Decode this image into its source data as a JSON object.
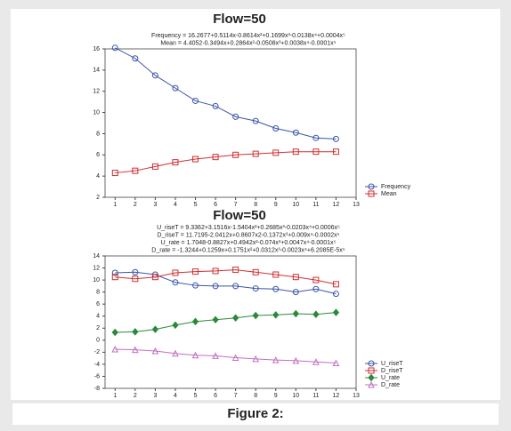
{
  "chart_data": [
    {
      "type": "line",
      "title": "Flow=50",
      "equations": [
        "Frequency = 16.2677+0.5114x-0.8614x²+0.1699x³-0.0138x⁴+0.0004x⁵",
        "Mean = 4.4052-0.3494x+0.2864x²-0.0508x³+0.0038x⁴-0.0001x⁵"
      ],
      "x": [
        1,
        2,
        3,
        4,
        5,
        6,
        7,
        8,
        9,
        10,
        11,
        12
      ],
      "series": [
        {
          "name": "Frequency",
          "color": "#3a55a8",
          "marker": "circle",
          "values": [
            16.1,
            15.1,
            13.5,
            12.3,
            11.1,
            10.6,
            9.6,
            9.2,
            8.5,
            8.1,
            7.6,
            7.5
          ]
        },
        {
          "name": "Mean",
          "color": "#d03030",
          "marker": "square",
          "values": [
            4.3,
            4.5,
            4.9,
            5.3,
            5.6,
            5.8,
            6.0,
            6.1,
            6.2,
            6.3,
            6.3,
            6.3
          ]
        }
      ],
      "xlim": [
        0.5,
        13
      ],
      "xticks": [
        1,
        2,
        3,
        4,
        5,
        6,
        7,
        8,
        9,
        10,
        11,
        12,
        13
      ],
      "ylim": [
        2,
        16
      ],
      "yticks": [
        2,
        4,
        6,
        8,
        10,
        12,
        14,
        16
      ],
      "legend": "lower right"
    },
    {
      "type": "line",
      "title": "Flow=50",
      "equations": [
        "U_riseT = 9.3362+3.1516x-1.5404x²+0.2685x³-0.0203x⁴+0.0006x⁵",
        "D_riseT = 11.7195-2.0412x+0.8607x2-0.1372x³+0.009x⁴-0.0002x⁵",
        "U_rate = 1.7048-0.8827x+0.4942x²-0.074x³+0.0047x⁴-0.0001x⁵",
        "D_rate = -1.3244+0.1259x+0.1751x²+0.0312x³-0.0023x⁴+6.2085E-5x⁵"
      ],
      "x": [
        1,
        2,
        3,
        4,
        5,
        6,
        7,
        8,
        9,
        10,
        11,
        12
      ],
      "series": [
        {
          "name": "U_riseT",
          "color": "#3a55a8",
          "marker": "circle",
          "values": [
            11.2,
            11.3,
            10.9,
            9.6,
            9.1,
            9.0,
            9.0,
            8.6,
            8.5,
            8.0,
            8.5,
            7.7
          ]
        },
        {
          "name": "D_riseT",
          "color": "#d03030",
          "marker": "square",
          "values": [
            10.5,
            10.2,
            10.5,
            11.2,
            11.4,
            11.5,
            11.7,
            11.3,
            10.9,
            10.5,
            10.0,
            9.3
          ]
        },
        {
          "name": "U_rate",
          "color": "#2a8a3a",
          "marker": "diamond",
          "values": [
            1.3,
            1.4,
            1.8,
            2.5,
            3.1,
            3.4,
            3.7,
            4.1,
            4.2,
            4.4,
            4.3,
            4.6
          ]
        },
        {
          "name": "D_rate",
          "color": "#c070c0",
          "marker": "triangle",
          "values": [
            -1.5,
            -1.6,
            -1.8,
            -2.2,
            -2.5,
            -2.6,
            -2.9,
            -3.1,
            -3.3,
            -3.4,
            -3.6,
            -3.8
          ]
        }
      ],
      "xlim": [
        0.5,
        13
      ],
      "xticks": [
        1,
        2,
        3,
        4,
        5,
        6,
        7,
        8,
        9,
        10,
        11,
        12,
        13
      ],
      "ylim": [
        -8,
        14
      ],
      "yticks": [
        -8,
        -6,
        -4,
        -2,
        0,
        2,
        4,
        6,
        8,
        10,
        12,
        14
      ],
      "legend": "lower right"
    }
  ],
  "caption": "Figure 2:"
}
